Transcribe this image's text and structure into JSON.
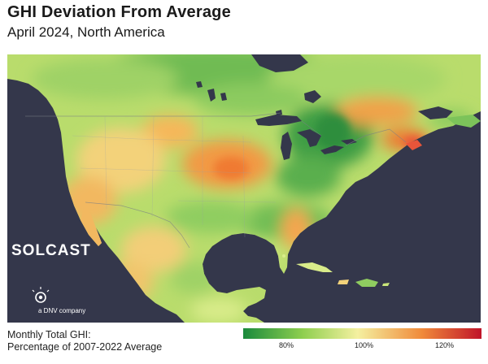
{
  "header": {
    "title": "GHI Deviation From Average",
    "subtitle": "April 2024, North America"
  },
  "brand": {
    "name": "SOLCAST",
    "tagline": "a DNV company"
  },
  "legend": {
    "label_line1": "Monthly Total GHI:",
    "label_line2": "Percentage of 2007-2022 Average",
    "ticks": [
      "80%",
      "100%",
      "120%"
    ],
    "colors": {
      "low": "#1a8a3c",
      "mid_low": "#8fcf4f",
      "neutral": "#f4f0a0",
      "mid_high": "#f08a3a",
      "high": "#c0142a"
    }
  },
  "map": {
    "ocean_color": "#34374b",
    "land_base_color": "#b7dd6d",
    "regions": [
      {
        "name": "canada-north",
        "description_color": "#7cc35a"
      },
      {
        "name": "great-lakes",
        "description_color": "#34374b"
      }
    ]
  }
}
